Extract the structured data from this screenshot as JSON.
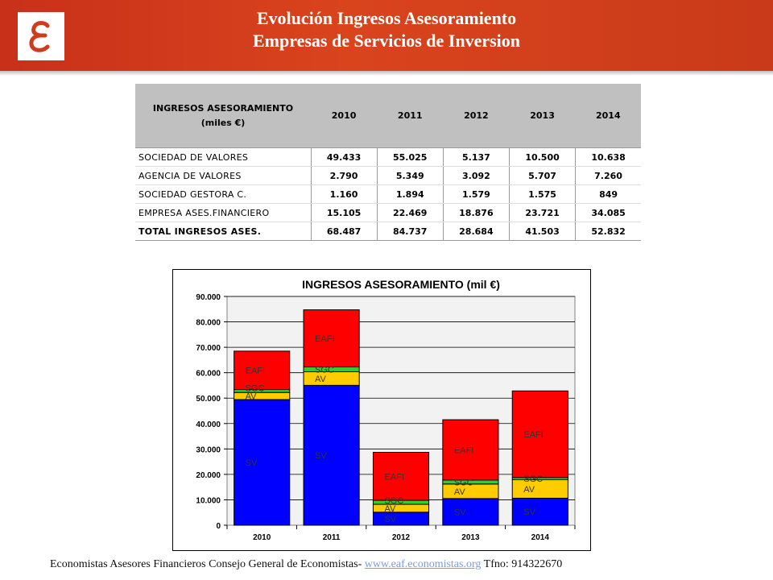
{
  "header": {
    "title_line1": "Evolución Ingresos Asesoramiento",
    "title_line2": "Empresas de Servicios de Inversion",
    "logo_icon": "epsilon-logo-icon",
    "background_color": "#d13b1c"
  },
  "table": {
    "header_label_line1": "INGRESOS ASESORAMIENTO",
    "header_label_line2": "(miles €)",
    "years": [
      "2010",
      "2011",
      "2012",
      "2013",
      "2014"
    ],
    "rows": [
      {
        "label": "SOCIEDAD DE VALORES",
        "values": [
          "49.433",
          "55.025",
          "5.137",
          "10.500",
          "10.638"
        ]
      },
      {
        "label": "AGENCIA DE VALORES",
        "values": [
          "2.790",
          "5.349",
          "3.092",
          "5.707",
          "7.260"
        ]
      },
      {
        "label": "SOCIEDAD GESTORA C.",
        "values": [
          "1.160",
          "1.894",
          "1.579",
          "1.575",
          "849"
        ]
      },
      {
        "label": "EMPRESA ASES.FINANCIERO",
        "values": [
          "15.105",
          "22.469",
          "18.876",
          "23.721",
          "34.085"
        ]
      }
    ],
    "total": {
      "label": "TOTAL INGRESOS ASES.",
      "values": [
        "68.487",
        "84.737",
        "28.684",
        "41.503",
        "52.832"
      ]
    }
  },
  "chart_data": {
    "type": "bar",
    "stacked": true,
    "title": "INGRESOS ASESORAMIENTO (mil €)",
    "categories": [
      "2010",
      "2011",
      "2012",
      "2013",
      "2014"
    ],
    "series": [
      {
        "name": "SV",
        "color": "#0000ff",
        "values": [
          49433,
          55025,
          5137,
          10500,
          10638
        ]
      },
      {
        "name": "AV",
        "color": "#ffcc00",
        "values": [
          2790,
          5349,
          3092,
          5707,
          7260
        ]
      },
      {
        "name": "SGC",
        "color": "#33cc33",
        "values": [
          1160,
          1894,
          1579,
          1575,
          849
        ]
      },
      {
        "name": "EAFI",
        "color": "#ff0000",
        "values": [
          15105,
          22469,
          18876,
          23721,
          34085
        ]
      }
    ],
    "ylim": [
      0,
      90000
    ],
    "yticks": [
      "0",
      "10.000",
      "20.000",
      "30.000",
      "40.000",
      "50.000",
      "60.000",
      "70.000",
      "80.000",
      "90.000"
    ],
    "grid": true,
    "legend": "none",
    "plot_background": "#f2f2f2"
  },
  "footer": {
    "text": "Economistas Asesores Financieros Consejo General de Economistas- ",
    "link": "www.eaf.economistas.org",
    "phone": " Tfno: 914322670"
  }
}
